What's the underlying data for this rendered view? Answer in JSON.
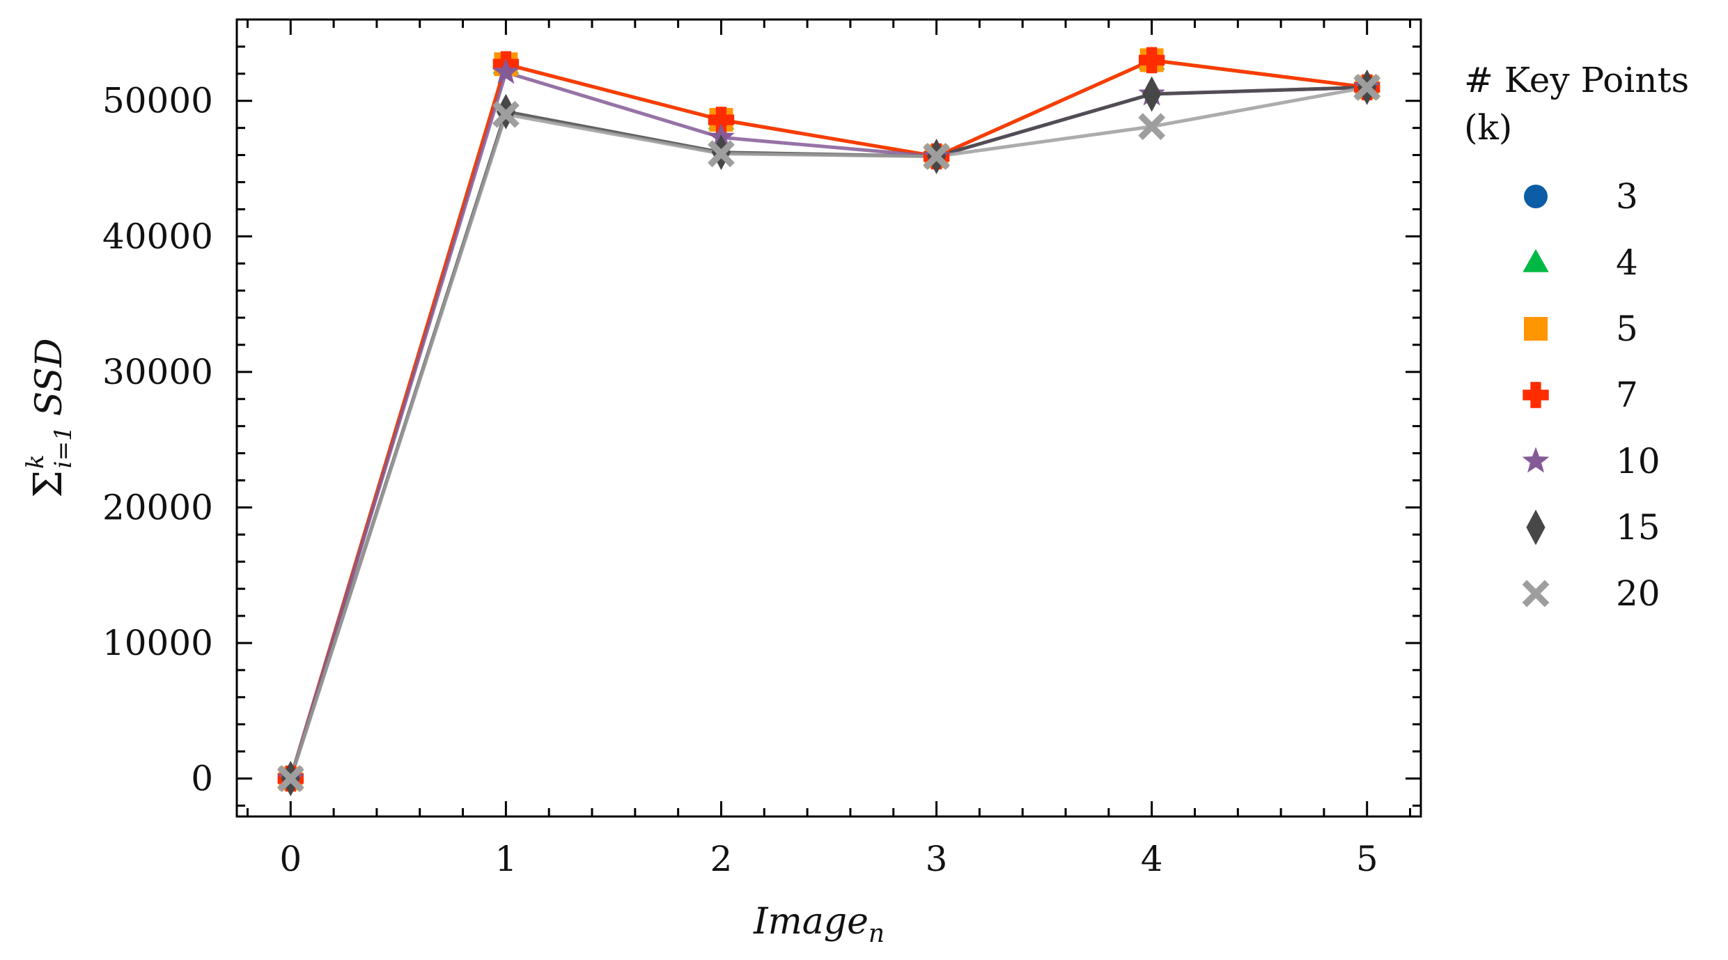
{
  "chart_data": {
    "type": "line",
    "xlabel": "Image",
    "xlabel_sub": "n",
    "ylabel": {
      "sigma": "Σ",
      "sup": "k",
      "sub": "i=1",
      "text": "SSD"
    },
    "x": [
      0,
      1,
      2,
      3,
      4,
      5
    ],
    "xticks": [
      "0",
      "1",
      "2",
      "3",
      "4",
      "5"
    ],
    "yticks": [
      "0",
      "10000",
      "20000",
      "30000",
      "40000",
      "50000"
    ],
    "ytick_values": [
      0,
      10000,
      20000,
      30000,
      40000,
      50000
    ],
    "xlim": [
      -0.25,
      5.25
    ],
    "ylim": [
      -2800,
      56000
    ],
    "grid": false,
    "legend": {
      "title_line1": "# Key Points",
      "title_line2": "(k)",
      "placement": "outside-right"
    },
    "series": [
      {
        "name": "3",
        "marker": "circle",
        "color": "#0C5DA5",
        "values": [
          0,
          52700,
          48600,
          45900,
          53000,
          51000
        ]
      },
      {
        "name": "4",
        "marker": "triangle",
        "color": "#00B945",
        "values": [
          0,
          52700,
          48600,
          45900,
          53000,
          51000
        ]
      },
      {
        "name": "5",
        "marker": "square",
        "color": "#FF9500",
        "values": [
          0,
          52700,
          48600,
          45900,
          53000,
          51000
        ]
      },
      {
        "name": "7",
        "marker": "plus",
        "color": "#FF2C00",
        "values": [
          0,
          52700,
          48600,
          45900,
          53000,
          51000
        ]
      },
      {
        "name": "10",
        "marker": "star",
        "color": "#845B97",
        "values": [
          0,
          52100,
          47300,
          45900,
          50500,
          51000
        ]
      },
      {
        "name": "15",
        "marker": "diamond",
        "color": "#474747",
        "values": [
          0,
          49200,
          46200,
          45900,
          50500,
          51000
        ]
      },
      {
        "name": "20",
        "marker": "x",
        "color": "#9E9E9E",
        "values": [
          0,
          49000,
          46100,
          45900,
          48100,
          51000
        ]
      }
    ]
  }
}
